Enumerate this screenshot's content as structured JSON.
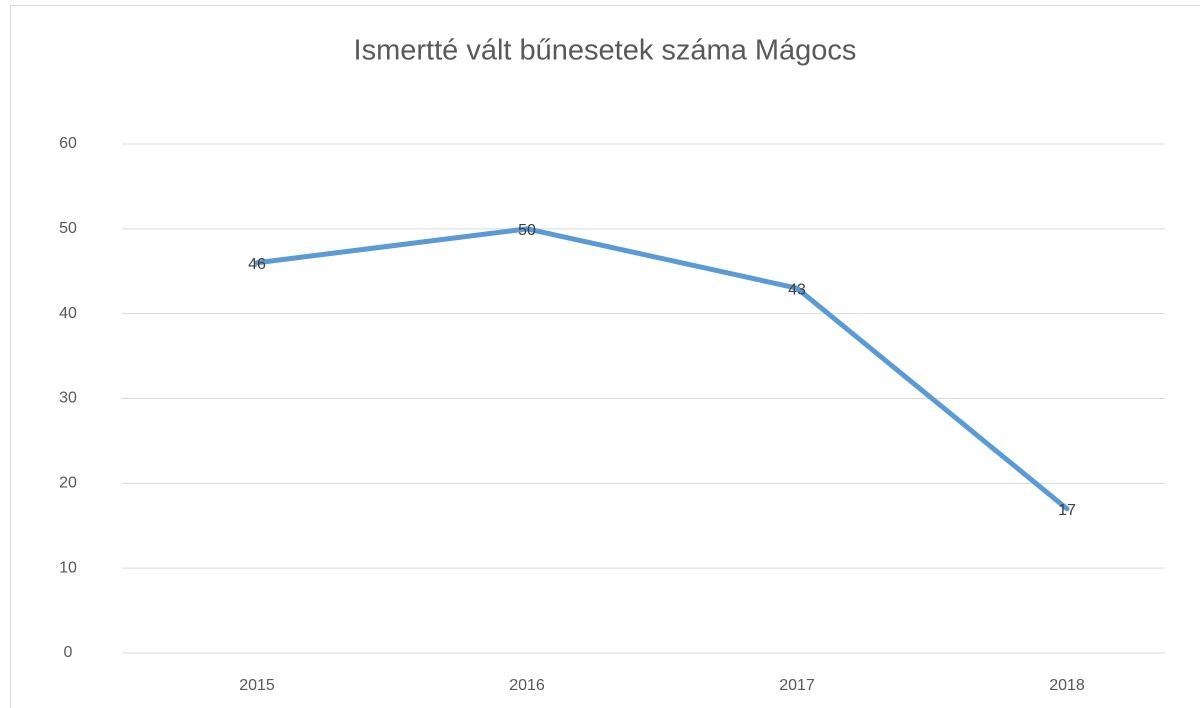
{
  "chart_data": {
    "type": "line",
    "title": "Ismertté vált bűnesetek száma Mágocs",
    "categories": [
      "2015",
      "2016",
      "2017",
      "2018"
    ],
    "values": [
      46,
      50,
      43,
      17
    ],
    "color": "#5b9bd5",
    "ylim": [
      0,
      60
    ],
    "yticks": [
      0,
      10,
      20,
      30,
      40,
      50,
      60
    ],
    "grid": true,
    "data_labels": true
  }
}
